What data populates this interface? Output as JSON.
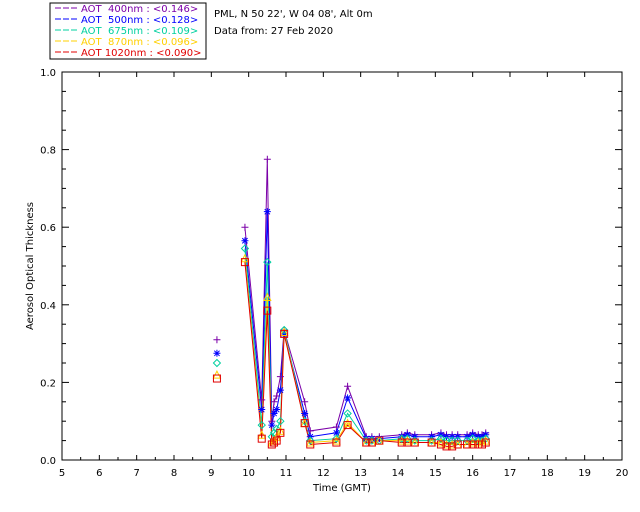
{
  "header": {
    "location": "PML, N 50 22', W 04 08', Alt 0m",
    "date_line": "Data from: 27 Feb 2020"
  },
  "chart_data": {
    "type": "scatter",
    "title": "",
    "xlabel": "Time (GMT)",
    "ylabel": "Aerosol Optical Thickness",
    "xlim": [
      5,
      20
    ],
    "ylim": [
      0.0,
      1.0
    ],
    "xticks": [
      "5",
      "6",
      "7",
      "8",
      "9",
      "10",
      "11",
      "12",
      "13",
      "14",
      "15",
      "16",
      "17",
      "18",
      "19",
      "20"
    ],
    "yticks": [
      "0.0",
      "0.2",
      "0.4",
      "0.6",
      "0.8",
      "1.0"
    ],
    "grid": false,
    "legend_position": "top-left",
    "series": [
      {
        "name": "AOT  400nm : <0.146>",
        "color": "#7b00a8",
        "marker": "plus",
        "x": [
          9.15,
          9.9,
          10.35,
          10.5,
          10.62,
          10.68,
          10.75,
          10.85,
          10.95,
          11.5,
          11.65,
          12.35,
          12.65,
          13.15,
          13.3,
          13.5,
          14.1,
          14.25,
          14.45,
          14.9,
          15.15,
          15.3,
          15.45,
          15.6,
          15.85,
          16.0,
          16.15,
          16.25,
          16.35
        ],
        "y": [
          0.31,
          0.6,
          0.155,
          0.775,
          0.1,
          0.15,
          0.165,
          0.215,
          0.335,
          0.15,
          0.075,
          0.085,
          0.19,
          0.06,
          0.06,
          0.06,
          0.065,
          0.07,
          0.065,
          0.065,
          0.07,
          0.065,
          0.065,
          0.065,
          0.065,
          0.07,
          0.065,
          0.065,
          0.07
        ]
      },
      {
        "name": "AOT  500nm : <0.128>",
        "color": "#0000ff",
        "marker": "star",
        "x": [
          9.15,
          9.9,
          10.35,
          10.5,
          10.62,
          10.68,
          10.75,
          10.85,
          10.95,
          11.5,
          11.65,
          12.35,
          12.65,
          13.15,
          13.3,
          13.5,
          14.1,
          14.25,
          14.45,
          14.9,
          15.15,
          15.3,
          15.45,
          15.6,
          15.85,
          16.0,
          16.15,
          16.25,
          16.35
        ],
        "y": [
          0.275,
          0.565,
          0.13,
          0.64,
          0.09,
          0.12,
          0.13,
          0.18,
          0.325,
          0.12,
          0.06,
          0.07,
          0.16,
          0.055,
          0.055,
          0.055,
          0.06,
          0.065,
          0.06,
          0.06,
          0.065,
          0.06,
          0.06,
          0.06,
          0.06,
          0.065,
          0.06,
          0.06,
          0.065
        ]
      },
      {
        "name": "AOT  675nm : <0.109>",
        "color": "#00d0a0",
        "marker": "diamond",
        "x": [
          9.15,
          9.9,
          10.35,
          10.5,
          10.62,
          10.68,
          10.75,
          10.85,
          10.95,
          11.5,
          11.65,
          12.35,
          12.65,
          13.15,
          13.3,
          13.5,
          14.1,
          14.25,
          14.45,
          14.9,
          15.15,
          15.3,
          15.45,
          15.6,
          15.85,
          16.0,
          16.15,
          16.25,
          16.35
        ],
        "y": [
          0.25,
          0.545,
          0.09,
          0.51,
          0.06,
          0.07,
          0.08,
          0.1,
          0.335,
          0.1,
          0.05,
          0.055,
          0.12,
          0.05,
          0.05,
          0.05,
          0.055,
          0.055,
          0.05,
          0.05,
          0.055,
          0.05,
          0.05,
          0.05,
          0.05,
          0.055,
          0.05,
          0.05,
          0.055
        ]
      },
      {
        "name": "AOT  870nm : <0.096>",
        "color": "#ffd000",
        "marker": "triangle",
        "x": [
          9.15,
          9.9,
          10.35,
          10.5,
          10.62,
          10.68,
          10.75,
          10.85,
          10.95,
          11.5,
          11.65,
          12.35,
          12.65,
          13.15,
          13.3,
          13.5,
          14.1,
          14.25,
          14.45,
          14.9,
          15.15,
          15.3,
          15.45,
          15.6,
          15.85,
          16.0,
          16.15,
          16.25,
          16.35
        ],
        "y": [
          0.22,
          0.52,
          0.065,
          0.42,
          0.045,
          0.05,
          0.06,
          0.075,
          0.33,
          0.095,
          0.045,
          0.05,
          0.095,
          0.045,
          0.045,
          0.05,
          0.05,
          0.05,
          0.045,
          0.045,
          0.045,
          0.04,
          0.04,
          0.04,
          0.04,
          0.045,
          0.045,
          0.045,
          0.05
        ]
      },
      {
        "name": "AOT 1020nm : <0.090>",
        "color": "#e00000",
        "marker": "square",
        "x": [
          9.15,
          9.9,
          10.35,
          10.5,
          10.62,
          10.68,
          10.75,
          10.85,
          10.95,
          11.5,
          11.65,
          12.35,
          12.65,
          13.15,
          13.3,
          13.5,
          14.1,
          14.25,
          14.45,
          14.9,
          15.15,
          15.3,
          15.45,
          15.6,
          15.85,
          16.0,
          16.15,
          16.25,
          16.35
        ],
        "y": [
          0.21,
          0.51,
          0.055,
          0.385,
          0.04,
          0.045,
          0.05,
          0.07,
          0.325,
          0.095,
          0.04,
          0.045,
          0.09,
          0.045,
          0.045,
          0.05,
          0.045,
          0.045,
          0.045,
          0.045,
          0.04,
          0.035,
          0.035,
          0.04,
          0.04,
          0.04,
          0.04,
          0.04,
          0.045
        ]
      }
    ]
  }
}
